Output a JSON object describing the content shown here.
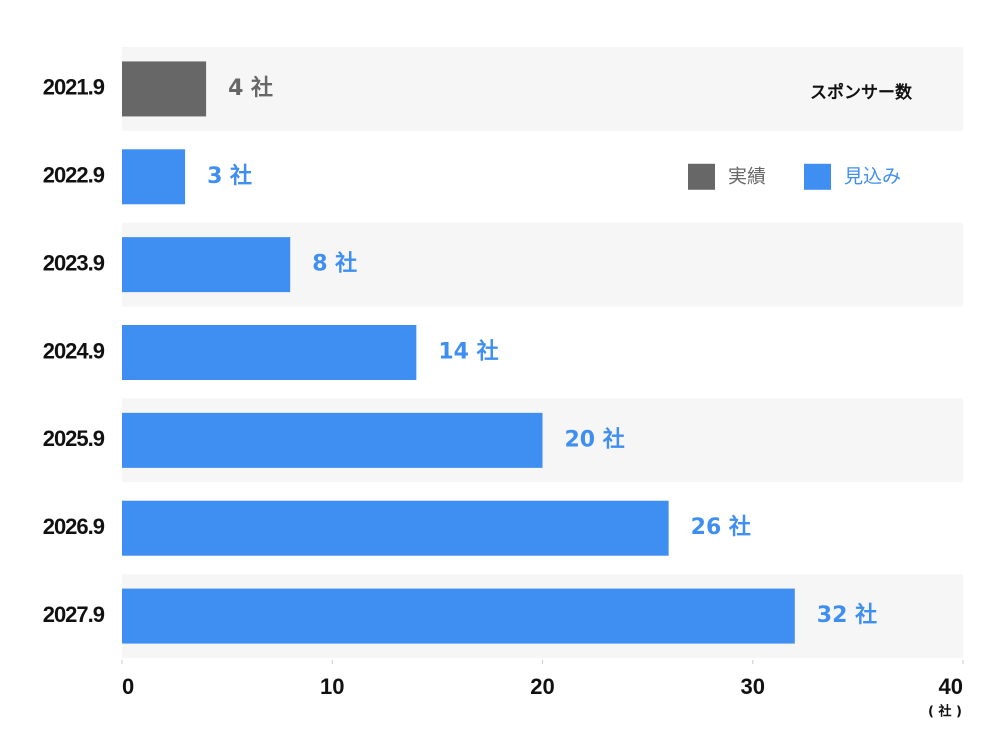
{
  "chart_data": {
    "type": "hbar",
    "title": "スポンサー数",
    "x_unit": "( 社 )",
    "categories": [
      "2021.9",
      "2022.9",
      "2023.9",
      "2024.9",
      "2025.9",
      "2026.9",
      "2027.9"
    ],
    "series": [
      {
        "name": "実績",
        "color": "#676767",
        "values": [
          4,
          null,
          null,
          null,
          null,
          null,
          null
        ],
        "value_labels": [
          "4 社",
          null,
          null,
          null,
          null,
          null,
          null
        ]
      },
      {
        "name": "見込み",
        "color": "#3f8ff2",
        "values": [
          null,
          3,
          8,
          14,
          20,
          26,
          32
        ],
        "value_labels": [
          null,
          "3 社",
          "8 社",
          "14 社",
          "20 社",
          "26 社",
          "32 社"
        ]
      }
    ],
    "xlim": [
      0,
      40
    ],
    "xticks": [
      0,
      10,
      20,
      30,
      40
    ]
  }
}
